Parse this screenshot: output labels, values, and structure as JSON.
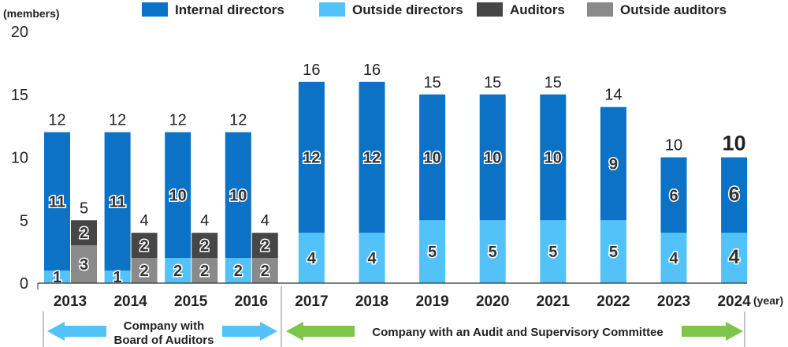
{
  "chart_data": {
    "type": "bar",
    "stacked": true,
    "y_unit": "(members)",
    "x_unit": "(year)",
    "ylim": [
      0,
      20
    ],
    "yticks": [
      0,
      5,
      10,
      15,
      20
    ],
    "grid": false,
    "legend_position": "top",
    "colors": {
      "internal_directors": "#0b72c6",
      "outside_directors": "#52c2f8",
      "auditors": "#464646",
      "outside_auditors": "#8a8a8a",
      "arrow_board": "#52c2f8",
      "arrow_committee": "#7dc64a"
    },
    "legend": [
      {
        "key": "internal_directors",
        "label": "Internal directors"
      },
      {
        "key": "outside_directors",
        "label": "Outside directors"
      },
      {
        "key": "auditors",
        "label": "Auditors"
      },
      {
        "key": "outside_auditors",
        "label": "Outside auditors"
      }
    ],
    "categories": [
      "2013",
      "2014",
      "2015",
      "2016",
      "2017",
      "2018",
      "2019",
      "2020",
      "2021",
      "2022",
      "2023",
      "2024"
    ],
    "directors": {
      "outside_directors": [
        1,
        1,
        2,
        2,
        4,
        4,
        5,
        5,
        5,
        5,
        4,
        4
      ],
      "internal_directors": [
        11,
        11,
        10,
        10,
        12,
        12,
        10,
        10,
        10,
        9,
        6,
        6
      ],
      "totals": [
        12,
        12,
        12,
        12,
        16,
        16,
        15,
        15,
        15,
        14,
        10,
        10
      ]
    },
    "auditors_group": {
      "categories": [
        "2013",
        "2014",
        "2015",
        "2016"
      ],
      "outside_auditors": [
        3,
        2,
        2,
        2
      ],
      "auditors": [
        2,
        2,
        2,
        2
      ],
      "totals": [
        5,
        4,
        4,
        4
      ]
    },
    "periods": [
      {
        "label_lines": [
          "Company with",
          "Board of Auditors"
        ],
        "from": "2013",
        "to": "2016",
        "color_key": "arrow_board"
      },
      {
        "label_lines": [
          "Company with an Audit and Supervisory Committee"
        ],
        "from": "2017",
        "to": "2024",
        "color_key": "arrow_committee"
      }
    ]
  }
}
